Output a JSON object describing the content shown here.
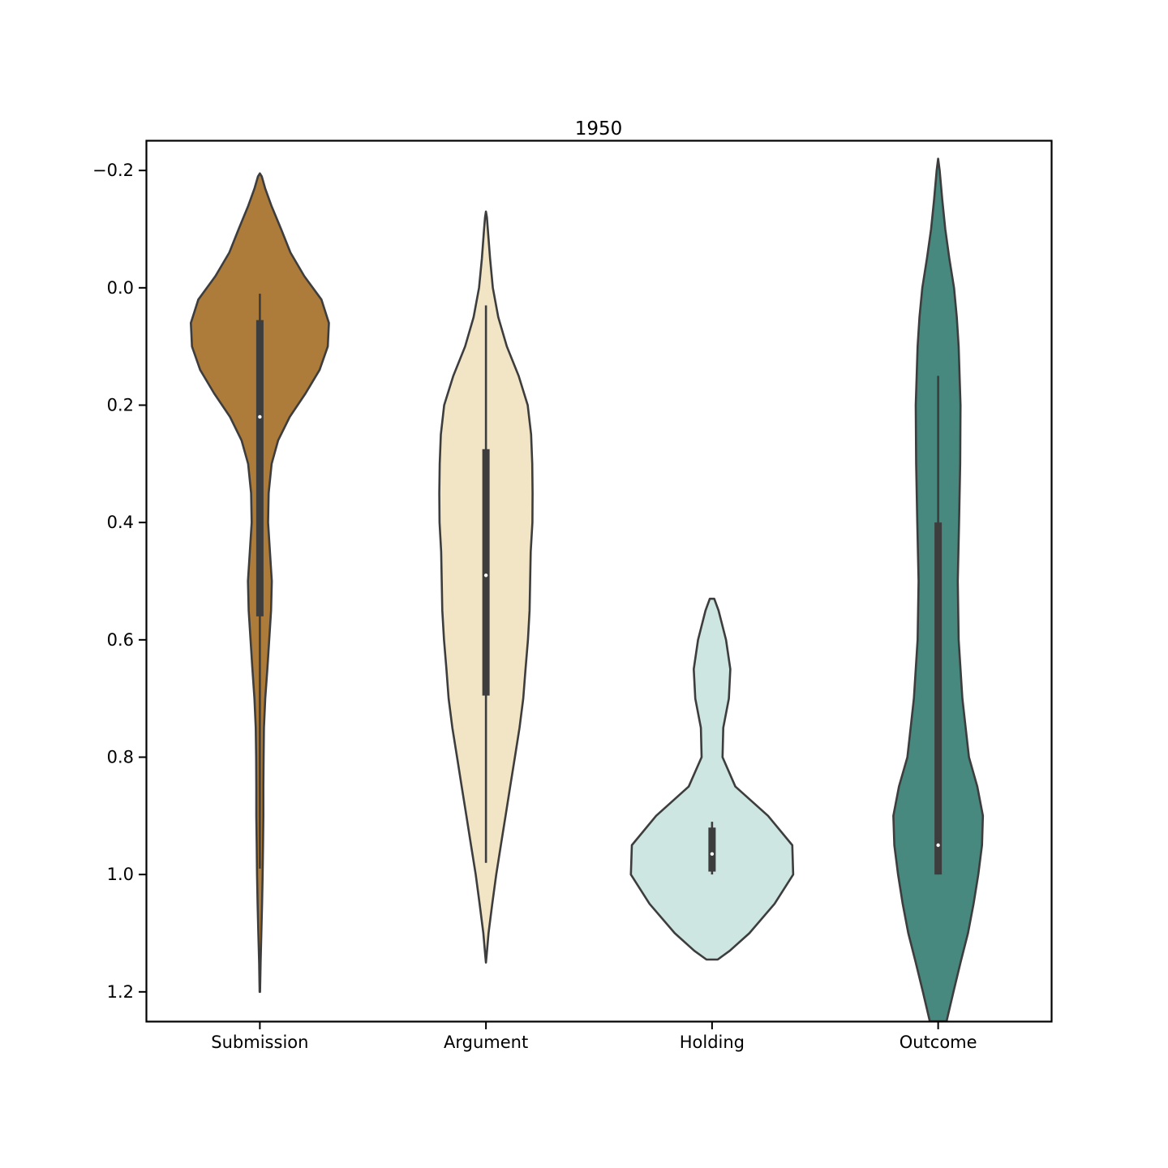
{
  "chart_data": {
    "type": "violin",
    "title": "1950",
    "xlabel": "",
    "ylabel": "",
    "categories": [
      "Submission",
      "Argument",
      "Holding",
      "Outcome"
    ],
    "y_ticks": [
      -0.2,
      0.0,
      0.2,
      0.4,
      0.6,
      0.8,
      1.0,
      1.2
    ],
    "y_tick_labels": [
      "−0.2",
      "0.0",
      "0.2",
      "0.4",
      "0.6",
      "0.8",
      "1.0",
      "1.2"
    ],
    "ylim": [
      1.25,
      -0.25
    ],
    "y_inverted": true,
    "grid": false,
    "legend": "none",
    "violins": [
      {
        "category": "Submission",
        "color": "#AD7C3B",
        "density": [
          [
            -0.195,
            0.0
          ],
          [
            -0.19,
            0.01
          ],
          [
            -0.17,
            0.028
          ],
          [
            -0.14,
            0.062
          ],
          [
            -0.1,
            0.114
          ],
          [
            -0.06,
            0.164
          ],
          [
            -0.02,
            0.238
          ],
          [
            0.02,
            0.33
          ],
          [
            0.06,
            0.37
          ],
          [
            0.1,
            0.364
          ],
          [
            0.14,
            0.32
          ],
          [
            0.18,
            0.245
          ],
          [
            0.22,
            0.16
          ],
          [
            0.26,
            0.098
          ],
          [
            0.3,
            0.063
          ],
          [
            0.35,
            0.047
          ],
          [
            0.4,
            0.044
          ],
          [
            0.45,
            0.054
          ],
          [
            0.5,
            0.064
          ],
          [
            0.55,
            0.06
          ],
          [
            0.6,
            0.05
          ],
          [
            0.65,
            0.04
          ],
          [
            0.7,
            0.029
          ],
          [
            0.75,
            0.022
          ],
          [
            0.8,
            0.02
          ],
          [
            0.85,
            0.019
          ],
          [
            0.9,
            0.019
          ],
          [
            0.95,
            0.017
          ],
          [
            1.0,
            0.015
          ],
          [
            1.05,
            0.012
          ],
          [
            1.1,
            0.008
          ],
          [
            1.15,
            0.004
          ],
          [
            1.2,
            0.001
          ]
        ],
        "whisker_low": 0.01,
        "q1": 0.055,
        "median": 0.22,
        "q3": 0.56,
        "whisker_high": 0.99
      },
      {
        "category": "Argument",
        "color": "#F2E5C6",
        "density": [
          [
            -0.13,
            0.0
          ],
          [
            -0.12,
            0.005
          ],
          [
            -0.1,
            0.01
          ],
          [
            -0.05,
            0.022
          ],
          [
            0.0,
            0.037
          ],
          [
            0.05,
            0.066
          ],
          [
            0.1,
            0.112
          ],
          [
            0.15,
            0.175
          ],
          [
            0.2,
            0.224
          ],
          [
            0.25,
            0.242
          ],
          [
            0.3,
            0.248
          ],
          [
            0.35,
            0.25
          ],
          [
            0.4,
            0.249
          ],
          [
            0.45,
            0.24
          ],
          [
            0.5,
            0.237
          ],
          [
            0.55,
            0.234
          ],
          [
            0.6,
            0.225
          ],
          [
            0.65,
            0.212
          ],
          [
            0.7,
            0.2
          ],
          [
            0.75,
            0.18
          ],
          [
            0.8,
            0.155
          ],
          [
            0.85,
            0.13
          ],
          [
            0.9,
            0.105
          ],
          [
            0.95,
            0.08
          ],
          [
            1.0,
            0.055
          ],
          [
            1.05,
            0.034
          ],
          [
            1.1,
            0.014
          ],
          [
            1.14,
            0.003
          ],
          [
            1.15,
            0.0
          ]
        ],
        "whisker_low": 0.03,
        "q1": 0.275,
        "median": 0.49,
        "q3": 0.695,
        "whisker_high": 0.98
      },
      {
        "category": "Holding",
        "color": "#CDE6E2",
        "density": [
          [
            0.53,
            0.012
          ],
          [
            0.55,
            0.035
          ],
          [
            0.6,
            0.075
          ],
          [
            0.65,
            0.098
          ],
          [
            0.7,
            0.09
          ],
          [
            0.75,
            0.06
          ],
          [
            0.8,
            0.056
          ],
          [
            0.85,
            0.125
          ],
          [
            0.9,
            0.3
          ],
          [
            0.95,
            0.43
          ],
          [
            1.0,
            0.435
          ],
          [
            1.05,
            0.335
          ],
          [
            1.1,
            0.2
          ],
          [
            1.13,
            0.095
          ],
          [
            1.145,
            0.03
          ]
        ],
        "whisker_low": 0.91,
        "q1": 0.92,
        "median": 0.965,
        "q3": 0.995,
        "whisker_high": 1.0
      },
      {
        "category": "Outcome",
        "color": "#47897F",
        "density": [
          [
            -0.22,
            0.0
          ],
          [
            -0.2,
            0.008
          ],
          [
            -0.15,
            0.022
          ],
          [
            -0.1,
            0.038
          ],
          [
            -0.05,
            0.06
          ],
          [
            0.0,
            0.085
          ],
          [
            0.05,
            0.1
          ],
          [
            0.1,
            0.11
          ],
          [
            0.2,
            0.12
          ],
          [
            0.3,
            0.118
          ],
          [
            0.4,
            0.112
          ],
          [
            0.5,
            0.105
          ],
          [
            0.6,
            0.11
          ],
          [
            0.7,
            0.13
          ],
          [
            0.8,
            0.165
          ],
          [
            0.85,
            0.21
          ],
          [
            0.9,
            0.24
          ],
          [
            0.95,
            0.235
          ],
          [
            1.0,
            0.215
          ],
          [
            1.05,
            0.19
          ],
          [
            1.1,
            0.16
          ],
          [
            1.15,
            0.12
          ],
          [
            1.2,
            0.082
          ],
          [
            1.25,
            0.045
          ]
        ],
        "whisker_low": 0.15,
        "q1": 0.4,
        "median": 0.95,
        "q3": 1.0,
        "whisker_high": 1.0
      }
    ]
  }
}
